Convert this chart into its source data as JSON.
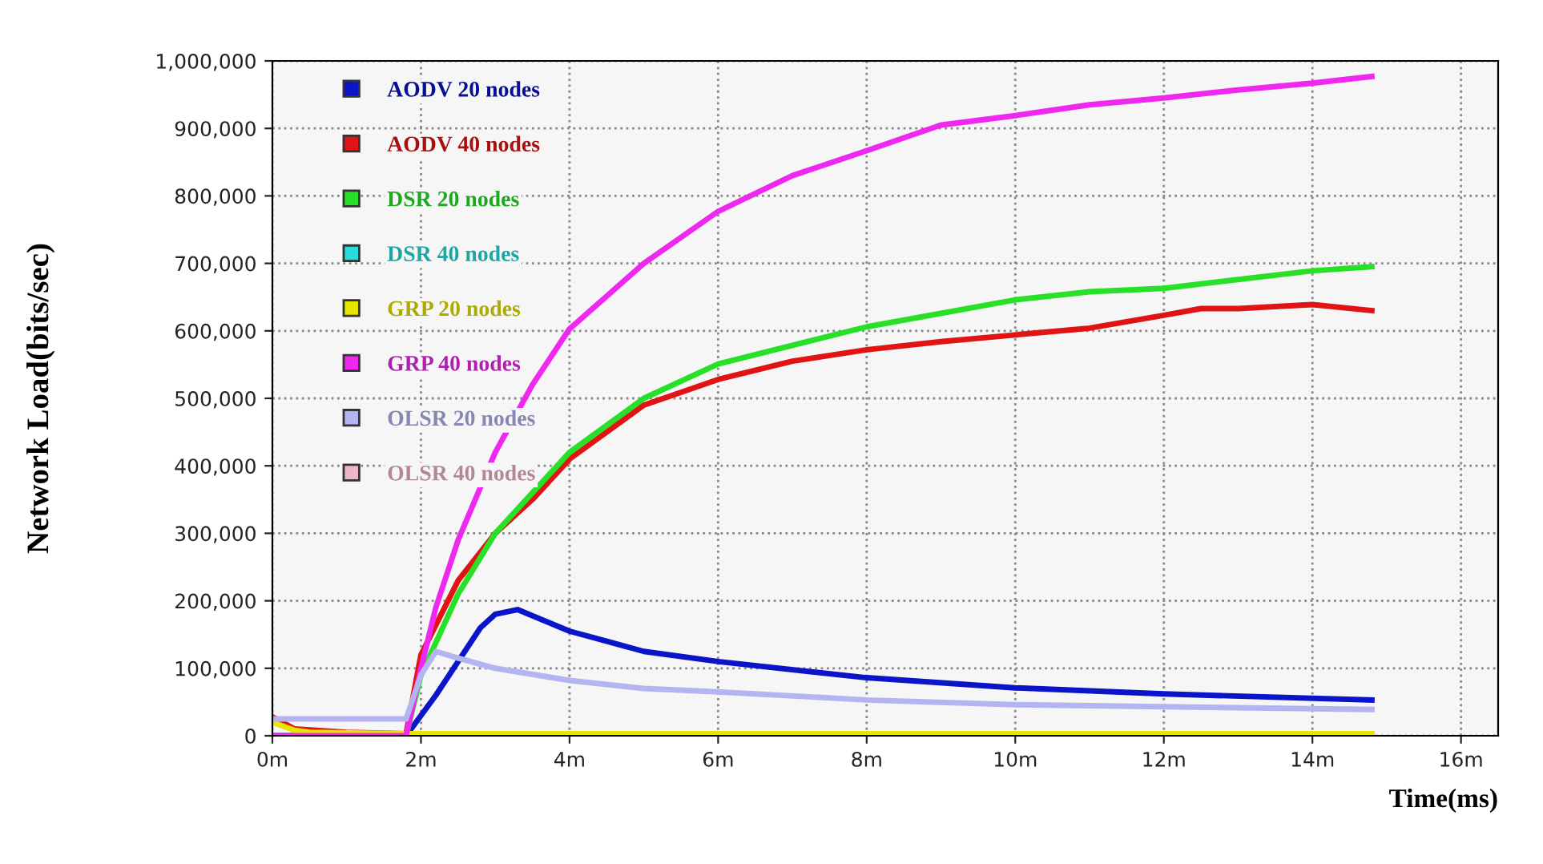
{
  "chart_data": {
    "type": "line",
    "xlabel": "Time(ms)",
    "ylabel": "Network Load(bits/sec)",
    "xlim": [
      0,
      16.5
    ],
    "ylim": [
      0,
      1000000
    ],
    "xticks": [
      {
        "value": 0,
        "label": "0m"
      },
      {
        "value": 2,
        "label": "2m"
      },
      {
        "value": 4,
        "label": "4m"
      },
      {
        "value": 6,
        "label": "6m"
      },
      {
        "value": 8,
        "label": "8m"
      },
      {
        "value": 10,
        "label": "10m"
      },
      {
        "value": 12,
        "label": "12m"
      },
      {
        "value": 14,
        "label": "14m"
      },
      {
        "value": 16,
        "label": "16m"
      }
    ],
    "yticks": [
      {
        "value": 0,
        "label": "0"
      },
      {
        "value": 100000,
        "label": "100,000"
      },
      {
        "value": 200000,
        "label": "200,000"
      },
      {
        "value": 300000,
        "label": "300,000"
      },
      {
        "value": 400000,
        "label": "400,000"
      },
      {
        "value": 500000,
        "label": "500,000"
      },
      {
        "value": 600000,
        "label": "600,000"
      },
      {
        "value": 700000,
        "label": "700,000"
      },
      {
        "value": 800000,
        "label": "800,000"
      },
      {
        "value": 900000,
        "label": "900,000"
      },
      {
        "value": 1000000,
        "label": "1,000,000"
      }
    ],
    "grid": true,
    "legend": "top left",
    "marker": "none",
    "line_style": "solid",
    "series": [
      {
        "name": "AODV 20 nodes",
        "color": "#0a14c8",
        "x": [
          0,
          1.8,
          2.0,
          2.2,
          2.5,
          2.8,
          3.0,
          3.3,
          4.0,
          5.0,
          6.0,
          8.0,
          10.0,
          12.0,
          14.8
        ],
        "values": [
          0,
          0,
          30000,
          60000,
          110000,
          160000,
          180000,
          187000,
          155000,
          125000,
          110000,
          86000,
          71000,
          62000,
          53000
        ]
      },
      {
        "name": "AODV 40 nodes",
        "color": "#e01414",
        "x": [
          0,
          0.3,
          1.0,
          1.8,
          2.0,
          2.5,
          3.0,
          3.5,
          4.0,
          5.0,
          6.0,
          7.0,
          8.0,
          9.0,
          10.0,
          11.0,
          12.0,
          12.5,
          13.0,
          14.0,
          14.8
        ],
        "values": [
          28000,
          10000,
          5000,
          3000,
          120000,
          230000,
          300000,
          350000,
          410000,
          490000,
          528000,
          555000,
          572000,
          584000,
          594000,
          604000,
          623000,
          633000,
          633000,
          639000,
          630000
        ]
      },
      {
        "name": "DSR 20 nodes",
        "color": "#28e028",
        "x": [
          0,
          1.8,
          2.0,
          2.5,
          3.0,
          3.5,
          4.0,
          5.0,
          6.0,
          8.0,
          10.0,
          11.0,
          12.0,
          14.0,
          14.8
        ],
        "values": [
          0,
          0,
          90000,
          210000,
          300000,
          360000,
          420000,
          500000,
          551000,
          606000,
          646000,
          658000,
          663000,
          689000,
          695000
        ]
      },
      {
        "name": "DSR 40 nodes",
        "color": "#28dcdc"
      },
      {
        "name": "GRP 20 nodes",
        "color": "#e6e600",
        "x": [
          0,
          0.3,
          0.5,
          1.8,
          14.8
        ],
        "values": [
          20000,
          8000,
          5000,
          3000,
          3000
        ]
      },
      {
        "name": "GRP 40 nodes",
        "color": "#ee28ee",
        "x": [
          0,
          1.8,
          2.0,
          2.2,
          2.5,
          3.0,
          3.5,
          4.0,
          5.0,
          6.0,
          7.0,
          8.0,
          9.0,
          10.0,
          11.0,
          12.0,
          13.0,
          14.0,
          14.8
        ],
        "values": [
          0,
          0,
          100000,
          190000,
          290000,
          420000,
          520000,
          603000,
          700000,
          777000,
          830000,
          867000,
          905000,
          919000,
          935000,
          945000,
          957000,
          967000,
          977000
        ]
      },
      {
        "name": "OLSR 20 nodes",
        "color": "#b4b4f0",
        "x": [
          0,
          1.8,
          2.0,
          2.2,
          2.5,
          3.0,
          4.0,
          5.0,
          6.0,
          8.0,
          10.0,
          12.0,
          14.8
        ],
        "values": [
          25000,
          25000,
          90000,
          125000,
          115000,
          100000,
          82000,
          70000,
          65000,
          53000,
          46000,
          43000,
          39000
        ]
      },
      {
        "name": "OLSR 40 nodes",
        "color": "#f0b4c8"
      }
    ]
  }
}
